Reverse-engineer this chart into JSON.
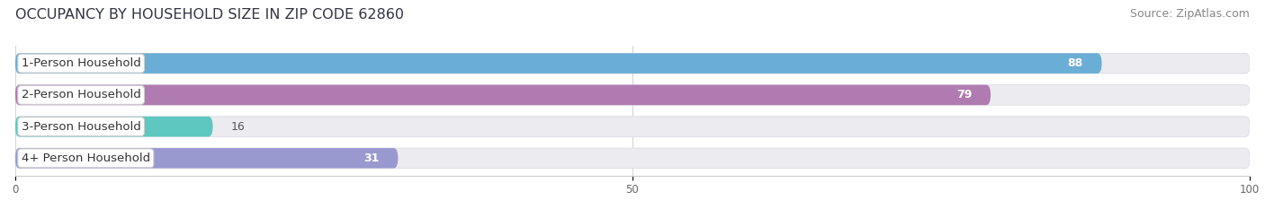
{
  "title": "OCCUPANCY BY HOUSEHOLD SIZE IN ZIP CODE 62860",
  "source": "Source: ZipAtlas.com",
  "categories": [
    "1-Person Household",
    "2-Person Household",
    "3-Person Household",
    "4+ Person Household"
  ],
  "values": [
    88,
    79,
    16,
    31
  ],
  "bar_colors": [
    "#6aadd5",
    "#b07bb0",
    "#5ec8c0",
    "#9999d0"
  ],
  "bar_background_color": "#ebebf0",
  "xlim": [
    0,
    100
  ],
  "xticks": [
    0,
    50,
    100
  ],
  "title_fontsize": 11.5,
  "source_fontsize": 9,
  "label_fontsize": 9.5,
  "value_fontsize": 9,
  "background_color": "#ffffff",
  "bar_height": 0.62,
  "label_box_color": "#ffffff",
  "label_box_edge": "#cccccc",
  "value_color_inside": "#ffffff",
  "value_color_outside": "#555555"
}
